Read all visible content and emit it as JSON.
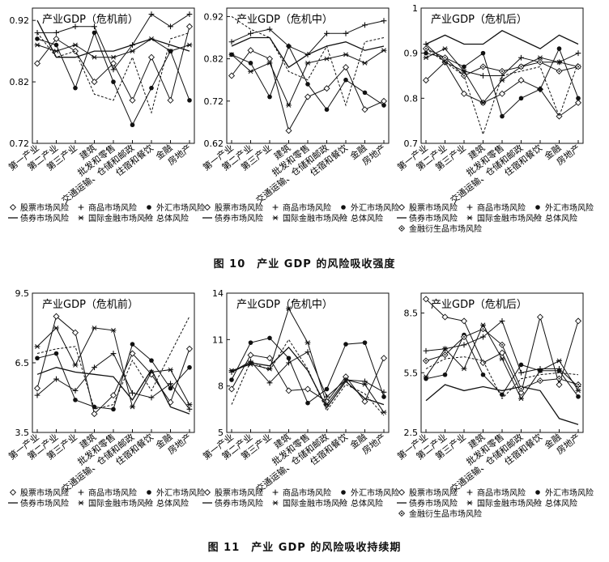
{
  "figures": [
    {
      "caption": "图 10　产业 GDP 的风险吸收强度"
    },
    {
      "caption": "图 11　产业 GDP 的风险吸收持续期"
    }
  ],
  "legend_labels": {
    "stock": "股票市场风险",
    "commodity": "商品市场风险",
    "fx": "外汇市场风险",
    "bond": "债券市场风险",
    "intl": "国际金融市场风险",
    "total": "总体风险",
    "deriv": "金融衍生品市场风险"
  },
  "chart_data": [
    {
      "type": "line",
      "title": "产业GDP（危机前）",
      "ylim": [
        0.72,
        0.94
      ],
      "yticks": [
        0.72,
        0.82,
        0.92
      ],
      "categories": [
        "第一产业",
        "第二产业",
        "第三产业",
        "建筑",
        "批发和零售",
        "交通运输、仓储和邮政",
        "住宿和餐饮",
        "金融",
        "房地产"
      ],
      "series": [
        {
          "name": "股票市场风险",
          "values": [
            0.85,
            0.89,
            0.87,
            0.82,
            0.85,
            0.79,
            0.86,
            0.79,
            0.91
          ]
        },
        {
          "name": "商品市场风险",
          "values": [
            0.9,
            0.9,
            0.91,
            0.91,
            0.84,
            0.88,
            0.93,
            0.91,
            0.93
          ]
        },
        {
          "name": "外汇市场风险",
          "values": [
            0.89,
            0.88,
            0.81,
            0.9,
            0.82,
            0.75,
            0.81,
            0.87,
            0.79
          ]
        },
        {
          "name": "债券市场风险",
          "values": [
            0.92,
            0.86,
            0.86,
            0.87,
            0.87,
            0.88,
            0.89,
            0.88,
            0.87
          ]
        },
        {
          "name": "国际金融市场风险",
          "values": [
            0.88,
            0.87,
            0.88,
            0.86,
            0.86,
            0.87,
            0.89,
            0.87,
            0.88
          ]
        },
        {
          "name": "总体风险",
          "values": [
            0.9,
            0.86,
            0.87,
            0.8,
            0.79,
            0.86,
            0.77,
            0.89,
            0.9
          ]
        }
      ]
    },
    {
      "type": "line",
      "title": "产业GDP（危机中）",
      "ylim": [
        0.62,
        0.94
      ],
      "yticks": [
        0.62,
        0.72,
        0.82,
        0.92
      ],
      "categories": [
        "第一产业",
        "第二产业",
        "第三产业",
        "建筑",
        "批发和零售",
        "交通运输、仓储和邮政",
        "住宿和餐饮",
        "金融",
        "房地产"
      ],
      "series": [
        {
          "name": "股票市场风险",
          "values": [
            0.78,
            0.84,
            0.82,
            0.65,
            0.73,
            0.75,
            0.8,
            0.7,
            0.72
          ]
        },
        {
          "name": "商品市场风险",
          "values": [
            0.86,
            0.88,
            0.89,
            0.85,
            0.83,
            0.88,
            0.88,
            0.9,
            0.91
          ]
        },
        {
          "name": "外汇市场风险",
          "values": [
            0.83,
            0.81,
            0.73,
            0.85,
            0.76,
            0.7,
            0.77,
            0.74,
            0.71
          ]
        },
        {
          "name": "债券市场风险",
          "values": [
            0.85,
            0.87,
            0.87,
            0.8,
            0.83,
            0.85,
            0.86,
            0.84,
            0.85
          ]
        },
        {
          "name": "国际金融市场风险",
          "values": [
            0.83,
            0.79,
            0.81,
            0.71,
            0.81,
            0.82,
            0.83,
            0.81,
            0.84
          ]
        },
        {
          "name": "总体风险",
          "values": [
            0.92,
            0.89,
            0.87,
            0.79,
            0.77,
            0.85,
            0.71,
            0.86,
            0.87
          ]
        }
      ]
    },
    {
      "type": "line",
      "title": "产业GDP（危机后）",
      "ylim": [
        0.7,
        1.0
      ],
      "yticks": [
        0.7,
        0.8,
        0.9,
        1
      ],
      "categories": [
        "第一产业",
        "第二产业",
        "第三产业",
        "建筑",
        "批发和零售",
        "交通运输、仓储和邮政",
        "住宿和餐饮",
        "金融",
        "房地产"
      ],
      "series": [
        {
          "name": "股票市场风险",
          "values": [
            0.84,
            0.88,
            0.81,
            0.79,
            0.81,
            0.84,
            0.82,
            0.76,
            0.79
          ]
        },
        {
          "name": "商品市场风险",
          "values": [
            0.92,
            0.88,
            0.86,
            0.85,
            0.85,
            0.89,
            0.88,
            0.88,
            0.9
          ]
        },
        {
          "name": "外汇市场风险",
          "values": [
            0.9,
            0.89,
            0.87,
            0.9,
            0.76,
            0.8,
            0.82,
            0.91,
            0.8
          ]
        },
        {
          "name": "债券市场风险",
          "values": [
            0.92,
            0.94,
            0.92,
            0.92,
            0.95,
            0.93,
            0.91,
            0.94,
            0.92
          ]
        },
        {
          "name": "国际金融市场风险",
          "values": [
            0.89,
            0.91,
            0.86,
            0.79,
            0.84,
            0.87,
            0.89,
            0.88,
            0.87
          ]
        },
        {
          "name": "总体风险",
          "values": [
            0.91,
            0.88,
            0.85,
            0.72,
            0.85,
            0.86,
            0.87,
            0.76,
            0.88
          ]
        },
        {
          "name": "金融衍生品市场风险",
          "values": [
            0.91,
            0.89,
            0.85,
            0.87,
            0.86,
            0.87,
            0.88,
            0.86,
            0.87
          ]
        }
      ]
    },
    {
      "type": "line",
      "title": "产业GDP（危机前）",
      "ylim": [
        3.5,
        9.5
      ],
      "yticks": [
        3.5,
        6.5,
        9.5
      ],
      "categories": [
        "第一产业",
        "第二产业",
        "第三产业",
        "建筑",
        "批发和零售",
        "交通运输、仓储和邮政",
        "住宿和餐饮",
        "金融",
        "房地产"
      ],
      "series": [
        {
          "name": "股票市场风险",
          "values": [
            5.4,
            8.5,
            7.8,
            4.3,
            5.1,
            6.9,
            6.0,
            4.8,
            7.1
          ]
        },
        {
          "name": "商品市场风险",
          "values": [
            5.1,
            5.8,
            5.3,
            6.3,
            6.9,
            5.2,
            5.0,
            5.6,
            4.5
          ]
        },
        {
          "name": "外汇市场风险",
          "values": [
            6.7,
            6.9,
            4.9,
            4.6,
            4.5,
            7.3,
            6.6,
            5.4,
            6.3
          ]
        },
        {
          "name": "债券市场风险",
          "values": [
            6.0,
            6.3,
            6.1,
            6.0,
            5.9,
            4.9,
            6.2,
            4.6,
            4.3
          ]
        },
        {
          "name": "国际金融市场风险",
          "values": [
            7.2,
            8.0,
            6.4,
            8.0,
            7.9,
            4.6,
            6.1,
            6.2,
            4.7
          ]
        },
        {
          "name": "总体风险",
          "values": [
            6.9,
            7.1,
            7.2,
            4.5,
            4.7,
            6.6,
            5.3,
            6.9,
            8.5
          ]
        }
      ]
    },
    {
      "type": "line",
      "title": "产业GDP（危机中）",
      "ylim": [
        5,
        14
      ],
      "yticks": [
        5,
        8,
        11,
        14
      ],
      "categories": [
        "第一产业",
        "第二产业",
        "第三产业",
        "建筑",
        "批发和零售",
        "交通运输、仓储和邮政",
        "住宿和餐饮",
        "金融",
        "房地产"
      ],
      "series": [
        {
          "name": "股票市场风险",
          "values": [
            7.8,
            10.0,
            9.8,
            7.7,
            7.8,
            7.0,
            8.6,
            7.0,
            9.8
          ]
        },
        {
          "name": "商品市场风险",
          "values": [
            8.9,
            9.6,
            8.2,
            9.5,
            10.2,
            7.3,
            8.4,
            8.3,
            7.6
          ]
        },
        {
          "name": "外汇市场风险",
          "values": [
            8.4,
            10.8,
            11.1,
            9.8,
            6.9,
            7.8,
            10.7,
            10.8,
            7.3
          ]
        },
        {
          "name": "债券市场风险",
          "values": [
            8.9,
            9.5,
            9.3,
            10.5,
            9.0,
            6.6,
            8.3,
            7.2,
            6.8
          ]
        },
        {
          "name": "国际金融市场风险",
          "values": [
            9.0,
            9.4,
            9.1,
            13.0,
            10.8,
            6.8,
            8.4,
            8.1,
            6.3
          ]
        },
        {
          "name": "总体风险",
          "values": [
            6.8,
            9.6,
            9.0,
            11.0,
            9.1,
            6.4,
            8.1,
            7.5,
            6.1
          ]
        }
      ]
    },
    {
      "type": "line",
      "title": "产业GDP（危机后）",
      "ylim": [
        2.5,
        9.5
      ],
      "yticks": [
        2.5,
        5.5,
        8.5
      ],
      "categories": [
        "第一产业",
        "第二产业",
        "第三产业",
        "建筑",
        "批发和零售",
        "交通运输、仓储和邮政",
        "住宿和餐饮",
        "金融",
        "房地产"
      ],
      "series": [
        {
          "name": "股票市场风险",
          "values": [
            9.2,
            8.3,
            8.1,
            6.0,
            6.5,
            4.5,
            8.3,
            4.9,
            8.1
          ]
        },
        {
          "name": "商品市场风险",
          "values": [
            6.6,
            6.7,
            6.9,
            7.3,
            8.1,
            5.5,
            5.7,
            5.7,
            4.8
          ]
        },
        {
          "name": "外汇市场风险",
          "values": [
            5.2,
            5.4,
            7.4,
            5.4,
            4.4,
            5.9,
            5.6,
            5.6,
            4.3
          ]
        },
        {
          "name": "债券市场风险",
          "values": [
            4.1,
            4.9,
            4.6,
            4.8,
            4.6,
            4.8,
            4.6,
            3.2,
            2.9
          ]
        },
        {
          "name": "国际金融市场风险",
          "values": [
            5.3,
            6.7,
            5.7,
            7.9,
            6.2,
            4.2,
            5.6,
            6.1,
            4.6
          ]
        },
        {
          "name": "总体风险",
          "values": [
            5.7,
            6.2,
            6.3,
            6.1,
            4.2,
            5.2,
            5.4,
            5.5,
            5.4
          ]
        },
        {
          "name": "金融衍生品市场风险",
          "values": [
            6.1,
            6.4,
            7.3,
            7.7,
            6.9,
            4.7,
            5.1,
            5.2,
            4.9
          ]
        }
      ]
    }
  ]
}
